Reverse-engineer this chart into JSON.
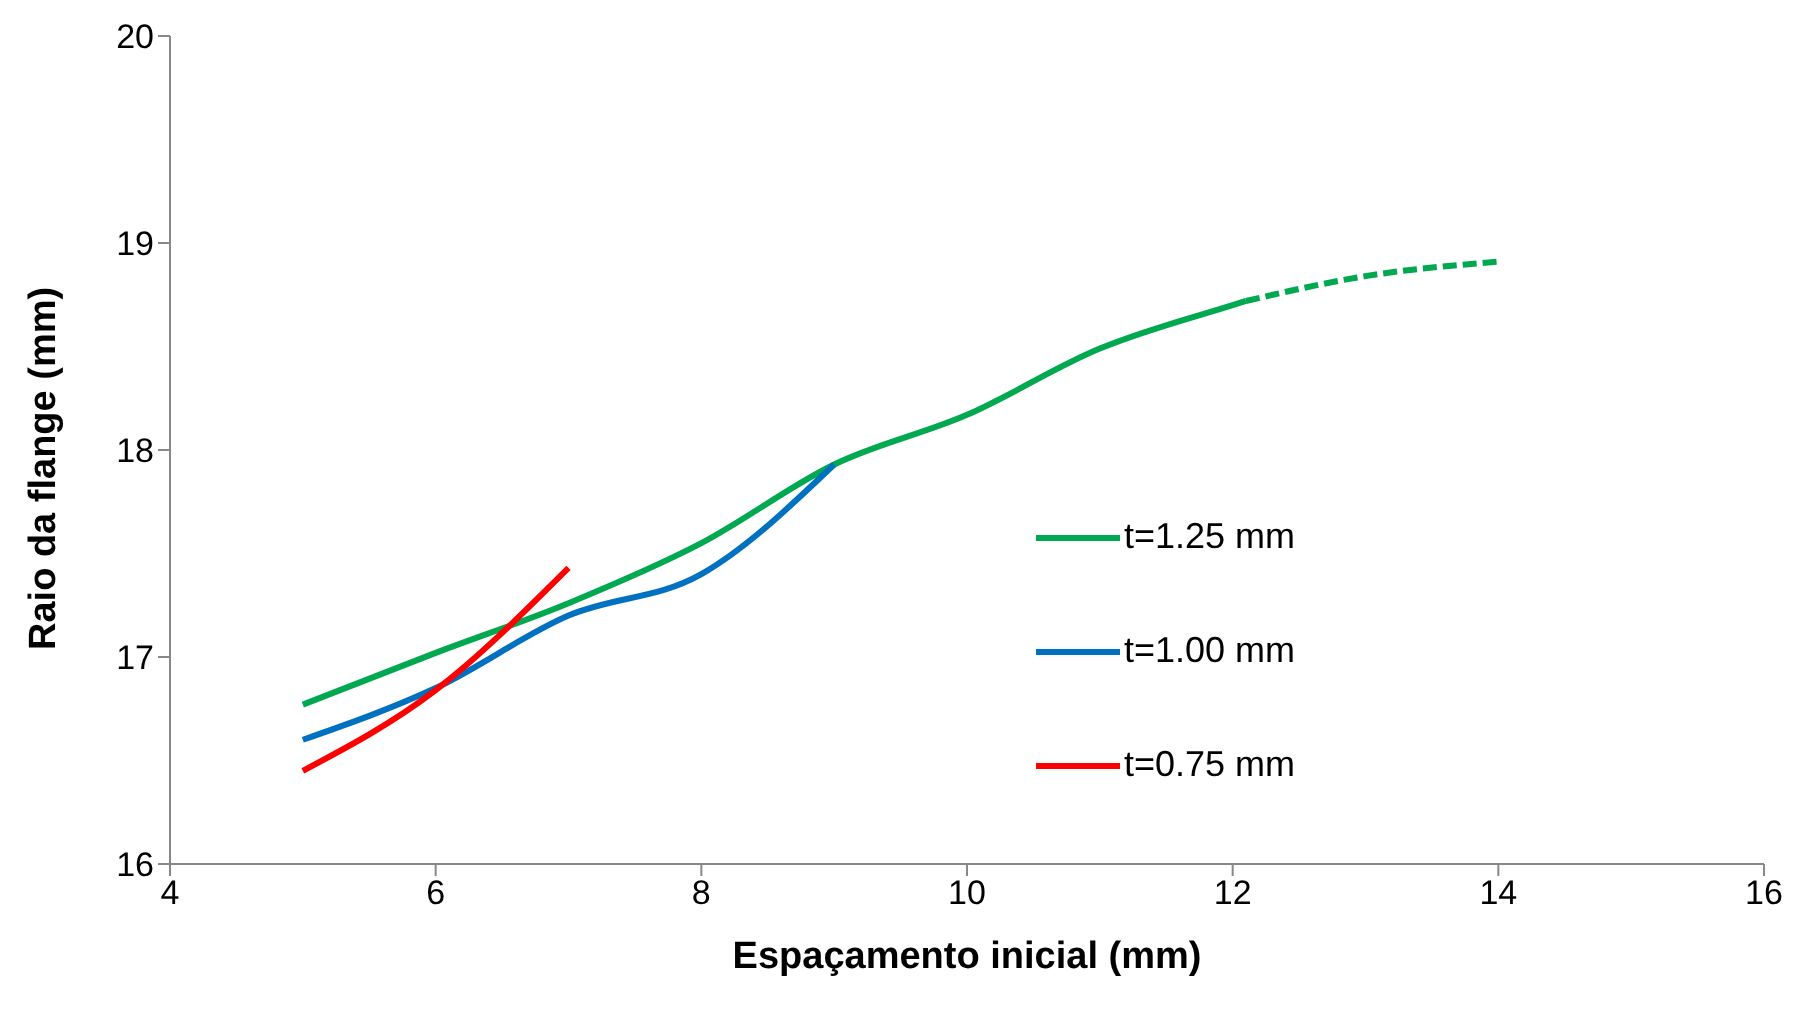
{
  "chart_data": {
    "type": "line",
    "xlabel": "Espaçamento inicial  (mm)",
    "ylabel": "Raio da flange (mm)",
    "xlim": [
      4,
      16
    ],
    "xticks": [
      4,
      6,
      8,
      10,
      12,
      14,
      16
    ],
    "ylim": [
      16,
      20
    ],
    "yticks": [
      16,
      17,
      18,
      19,
      20
    ],
    "grid": false,
    "legend": "right",
    "marker": "none",
    "series": [
      {
        "name": "t=1.25 mm",
        "color": "#00a84f",
        "x": [
          5,
          6,
          7,
          8,
          9,
          10,
          11,
          12,
          12.1
        ],
        "values": [
          16.77,
          17.02,
          17.26,
          17.55,
          17.93,
          18.17,
          18.49,
          18.7,
          18.72
        ]
      },
      {
        "name": "t=1.00 mm",
        "color": "#0070c0",
        "x": [
          5,
          6,
          7,
          8,
          9
        ],
        "values": [
          16.6,
          16.85,
          17.2,
          17.4,
          17.93
        ]
      },
      {
        "name": "t=0.75 mm",
        "color": "#ff0000",
        "x": [
          5,
          6,
          7
        ],
        "values": [
          16.45,
          16.84,
          17.43
        ]
      },
      {
        "color": "#00a84f",
        "line_style": "dashed",
        "x": [
          12.1,
          13,
          14
        ],
        "values": [
          18.72,
          18.84,
          18.91
        ]
      }
    ]
  }
}
